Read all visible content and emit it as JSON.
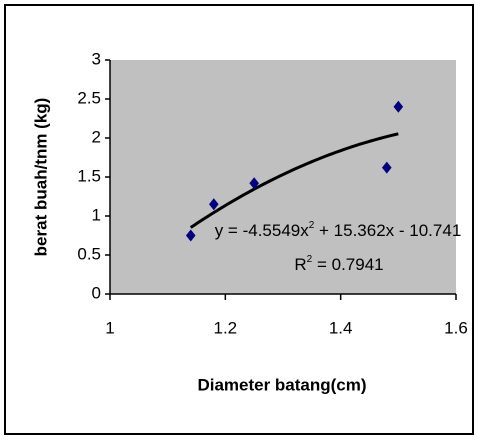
{
  "chart_data": {
    "type": "scatter",
    "x_label": "Diameter batang(cm)",
    "y_label": "berat buah/tnm (kg)",
    "x": [
      1.14,
      1.18,
      1.25,
      1.48,
      1.5
    ],
    "values": [
      0.75,
      1.15,
      1.42,
      1.62,
      2.4
    ],
    "color": "#000080",
    "plot_background": "#c0c0c0",
    "xlim": [
      1,
      1.6
    ],
    "xticks": [
      1,
      1.2,
      1.4,
      1.6
    ],
    "ylim": [
      0,
      3
    ],
    "yticks": [
      0,
      0.5,
      1,
      1.5,
      2,
      2.5,
      3
    ],
    "grid": false,
    "trendline": {
      "type": "polynomial",
      "coefficients": [
        -4.5549,
        15.362,
        -10.741
      ],
      "equation": [
        "y = -4.5549x",
        "2",
        " + 15.362x - 10.741"
      ],
      "r_squared": [
        "R",
        "2",
        " = 0.7941"
      ]
    }
  }
}
